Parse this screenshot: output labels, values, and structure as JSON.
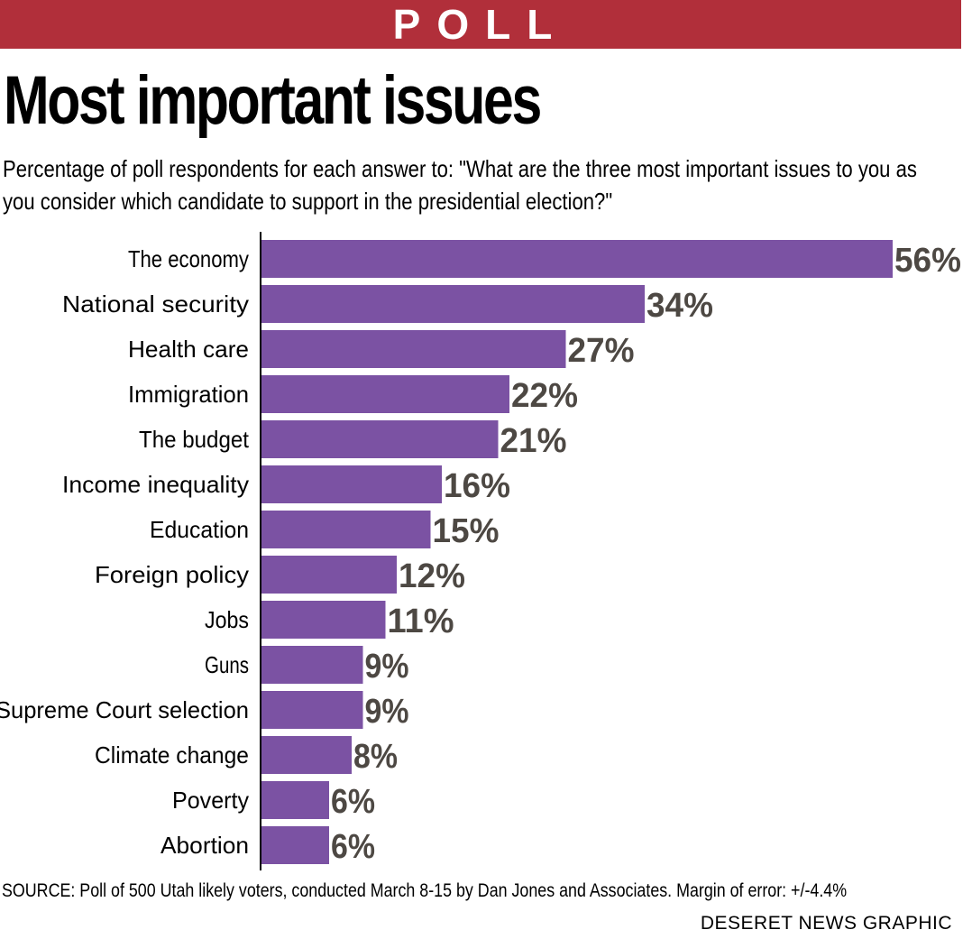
{
  "header": {
    "banner": "POLL"
  },
  "title": "Most important issues",
  "subtitle": "Percentage of poll respondents for each answer to: \"What are the three most important issues to you as you consider which candidate to support in the presidential election?\"",
  "source": "SOURCE: Poll of 500 Utah likely voters, conducted March 8-15 by Dan Jones and Associates. Margin of error: +/-4.4%",
  "credit": "DESERET NEWS GRAPHIC",
  "colors": {
    "banner": "#b12f3a",
    "bar": "#7b52a3",
    "value_label": "#4d4843"
  },
  "chart_data": {
    "type": "bar",
    "orientation": "horizontal",
    "categories": [
      "The economy",
      "National security",
      "Health care",
      "Immigration",
      "The budget",
      "Income inequality",
      "Education",
      "Foreign policy",
      "Jobs",
      "Guns",
      "Supreme Court selection",
      "Climate change",
      "Poverty",
      "Abortion"
    ],
    "values": [
      56,
      34,
      27,
      22,
      21,
      16,
      15,
      12,
      11,
      9,
      9,
      8,
      6,
      6
    ],
    "value_labels": [
      "56%",
      "34%",
      "27%",
      "22%",
      "21%",
      "16%",
      "15%",
      "12%",
      "11%",
      "9%",
      "9%",
      "8%",
      "6%",
      "6%"
    ],
    "xlim": [
      0,
      56
    ],
    "grid": false
  }
}
